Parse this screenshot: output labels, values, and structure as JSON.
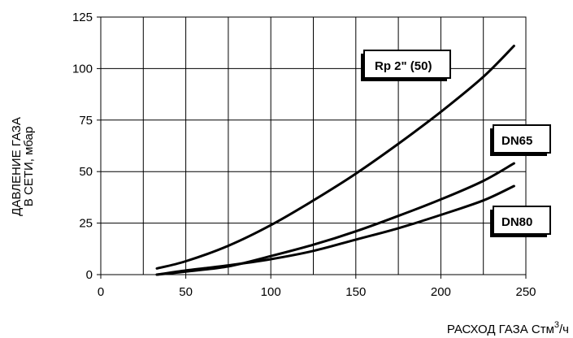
{
  "chart_data": {
    "type": "line",
    "xlabel": "РАСХОД ГАЗА Стм",
    "xlabel_sup": "3",
    "xlabel_suffix": "/ч",
    "ylabel_line1": "ДАВЛЕНИЕ ГАЗА",
    "ylabel_line2": "В СЕТИ, мбар",
    "xlim": [
      0,
      250
    ],
    "ylim": [
      0,
      125
    ],
    "x_ticks": [
      "0",
      "50",
      "100",
      "150",
      "200",
      "250"
    ],
    "y_ticks": [
      "0",
      "25",
      "50",
      "75",
      "100",
      "125"
    ],
    "grid": true,
    "series": [
      {
        "name": "Rp 2\" (50)",
        "x": [
          33,
          50,
          75,
          100,
          125,
          150,
          175,
          200,
          225,
          243
        ],
        "y": [
          3,
          6.5,
          14,
          24,
          36,
          49,
          63.5,
          79,
          96,
          111
        ]
      },
      {
        "name": "DN65",
        "x": [
          33,
          50,
          75,
          100,
          125,
          150,
          175,
          200,
          225,
          243
        ],
        "y": [
          0,
          1.5,
          4,
          9,
          14.5,
          21,
          28.5,
          36.5,
          45.5,
          54
        ]
      },
      {
        "name": "DN80",
        "x": [
          33,
          50,
          75,
          100,
          125,
          150,
          175,
          200,
          225,
          243
        ],
        "y": [
          0,
          2,
          4.5,
          7.5,
          11.5,
          17,
          22.5,
          29,
          36,
          43
        ]
      }
    ]
  }
}
